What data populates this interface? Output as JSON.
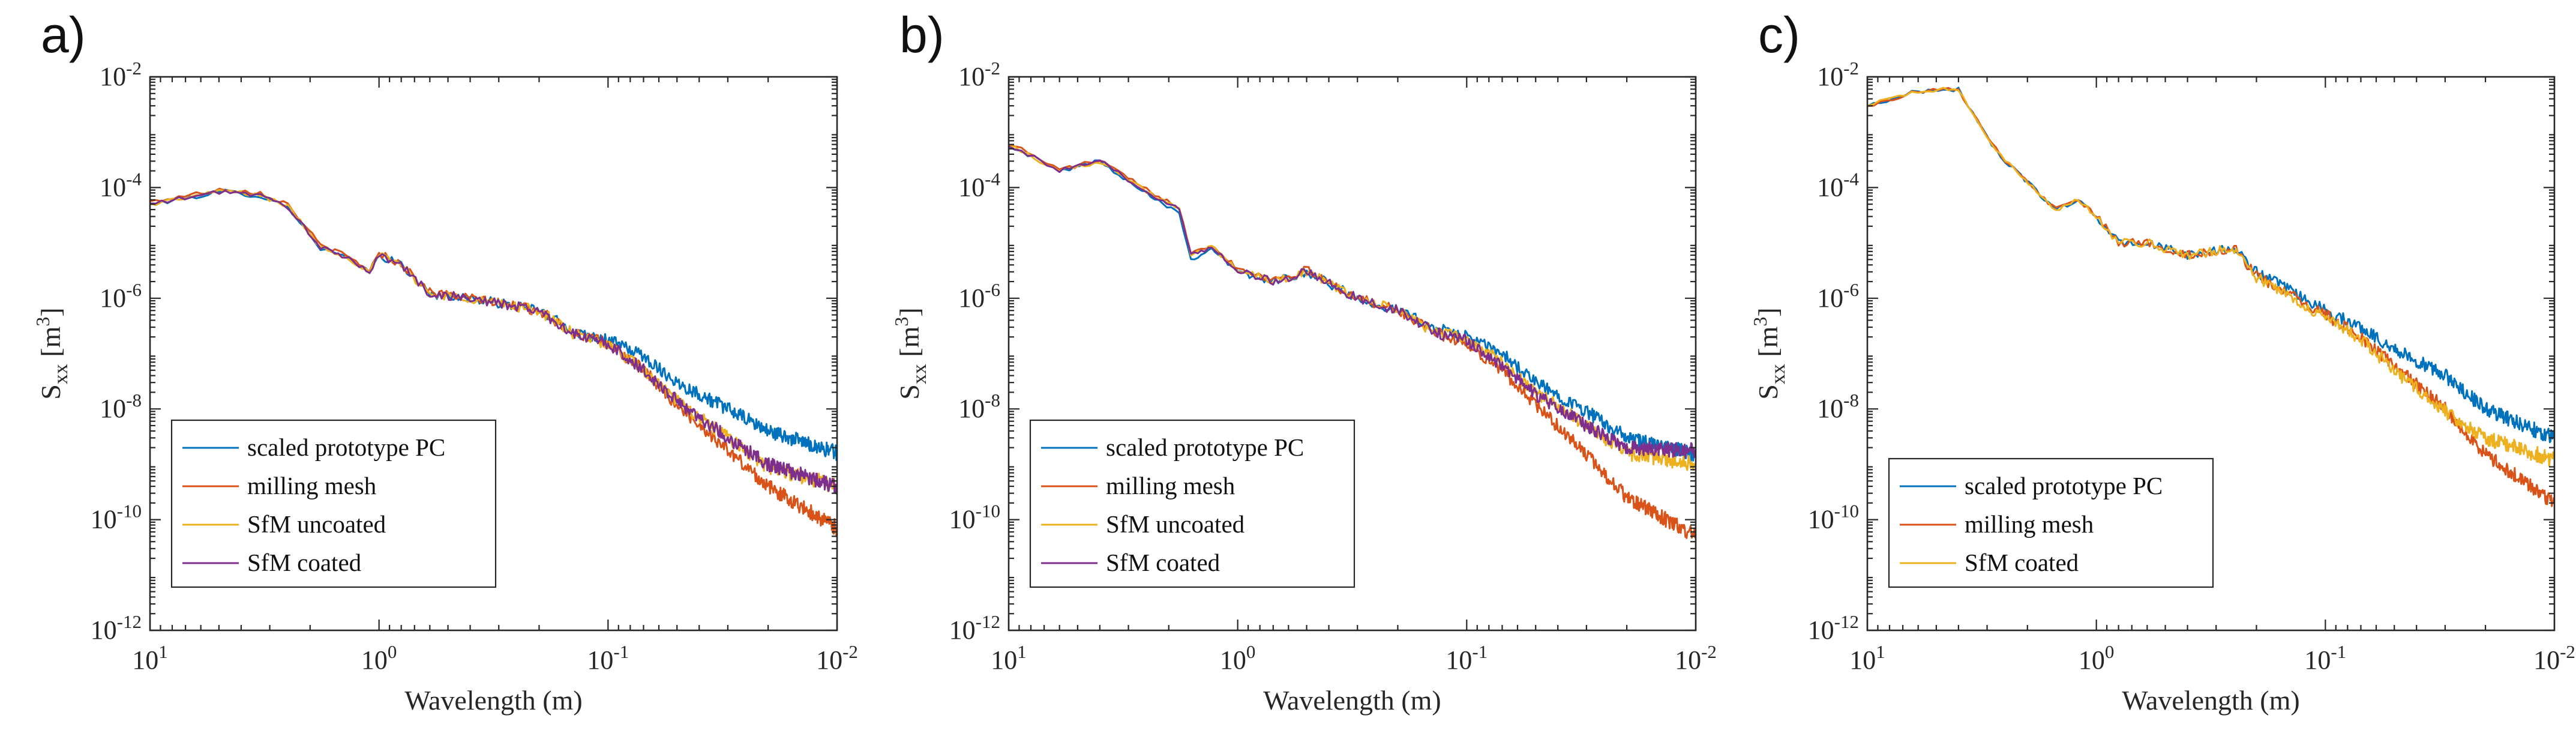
{
  "figure": {
    "panels": [
      {
        "panel_label": "a)",
        "ylabel_main": "S",
        "ylabel_sub": "xx",
        "ylabel_unit": "[m",
        "ylabel_sup": "3",
        "ylabel_close": "]"
      },
      {
        "panel_label": "b)",
        "ylabel_main": "S",
        "ylabel_sub": "xx",
        "ylabel_unit": "[m",
        "ylabel_sup": "3",
        "ylabel_close": "]"
      },
      {
        "panel_label": "c)",
        "ylabel_main": "S",
        "ylabel_sub": "xx",
        "ylabel_unit": "[m",
        "ylabel_sup": "3",
        "ylabel_close": "]"
      }
    ]
  },
  "chart_data": [
    {
      "type": "line",
      "panel_label": "a)",
      "xlabel": "Wavelength (m)",
      "ylabel": "S_xx [m^3]",
      "xscale": "log",
      "yscale": "log",
      "x_reversed": true,
      "xlim": [
        10,
        0.01
      ],
      "ylim": [
        1e-12,
        0.01
      ],
      "xticks": [
        {
          "v": 10,
          "b": "10",
          "e": "1"
        },
        {
          "v": 1,
          "b": "10",
          "e": "0"
        },
        {
          "v": 0.1,
          "b": "10",
          "e": "-1"
        },
        {
          "v": 0.01,
          "b": "10",
          "e": "-2"
        }
      ],
      "yticks": [
        {
          "v": 1e-12,
          "b": "10",
          "e": "-12"
        },
        {
          "v": 1e-10,
          "b": "10",
          "e": "-10"
        },
        {
          "v": 1e-08,
          "b": "10",
          "e": "-8"
        },
        {
          "v": 1e-06,
          "b": "10",
          "e": "-6"
        },
        {
          "v": 0.0001,
          "b": "10",
          "e": "-4"
        },
        {
          "v": 0.01,
          "b": "10",
          "e": "-2"
        }
      ],
      "legend_position": "bottom-left",
      "series": [
        {
          "name": "scaled prototype PC",
          "color": "#0072BD",
          "x": [
            10,
            4.7,
            3.3,
            2.5,
            1.8,
            1.4,
            1.1,
            1,
            0.8,
            0.6,
            0.4,
            0.2,
            0.14,
            0.1,
            0.07,
            0.05,
            0.03,
            0.02,
            0.01
          ],
          "y": [
            5e-05,
            8.5e-05,
            7e-05,
            4.5e-05,
            8e-06,
            5.5e-06,
            3e-06,
            6e-06,
            4e-06,
            1.2e-06,
            1e-06,
            6e-07,
            2.5e-07,
            1.8e-07,
            9e-08,
            3e-08,
            1e-08,
            4e-09,
            1.6e-09
          ]
        },
        {
          "name": "milling mesh",
          "color": "#D95319",
          "x": [
            10,
            4.7,
            3.3,
            2.5,
            1.8,
            1.4,
            1.1,
            1,
            0.8,
            0.6,
            0.4,
            0.2,
            0.14,
            0.1,
            0.07,
            0.05,
            0.03,
            0.02,
            0.01
          ],
          "y": [
            5.5e-05,
            9.5e-05,
            8e-05,
            5e-05,
            9e-06,
            6e-06,
            3.2e-06,
            6.5e-06,
            4.2e-06,
            1.3e-06,
            1e-06,
            6e-07,
            2.3e-07,
            1.5e-07,
            5e-08,
            1.2e-08,
            1.8e-09,
            4e-10,
            7e-11
          ]
        },
        {
          "name": "SfM uncoated",
          "color": "#EDB120",
          "x": [
            10,
            4.7,
            3.3,
            2.5,
            1.8,
            1.4,
            1.1,
            1,
            0.8,
            0.6,
            0.4,
            0.2,
            0.14,
            0.1,
            0.07,
            0.05,
            0.03,
            0.02,
            0.01
          ],
          "y": [
            5e-05,
            8.8e-05,
            7.2e-05,
            4.6e-05,
            8.5e-06,
            5.6e-06,
            3e-06,
            6e-06,
            4e-06,
            1.2e-06,
            1e-06,
            6e-07,
            2.2e-07,
            1.5e-07,
            5e-08,
            1.4e-08,
            3e-09,
            9e-10,
            4e-10
          ]
        },
        {
          "name": "SfM coated",
          "color": "#7E2F8E",
          "x": [
            10,
            4.7,
            3.3,
            2.5,
            1.8,
            1.4,
            1.1,
            1,
            0.8,
            0.6,
            0.4,
            0.2,
            0.14,
            0.1,
            0.07,
            0.05,
            0.03,
            0.02,
            0.01
          ],
          "y": [
            5e-05,
            8.7e-05,
            7.1e-05,
            4.5e-05,
            8.2e-06,
            5.5e-06,
            3e-06,
            6e-06,
            4e-06,
            1.2e-06,
            1e-06,
            6e-07,
            2.2e-07,
            1.5e-07,
            5e-08,
            1.4e-08,
            3e-09,
            1e-09,
            4e-10
          ]
        }
      ]
    },
    {
      "type": "line",
      "panel_label": "b)",
      "xlabel": "Wavelength (m)",
      "ylabel": "S_xx [m^3]",
      "xscale": "log",
      "yscale": "log",
      "x_reversed": true,
      "xlim": [
        10,
        0.01
      ],
      "ylim": [
        1e-12,
        0.01
      ],
      "xticks": [
        {
          "v": 10,
          "b": "10",
          "e": "1"
        },
        {
          "v": 1,
          "b": "10",
          "e": "0"
        },
        {
          "v": 0.1,
          "b": "10",
          "e": "-1"
        },
        {
          "v": 0.01,
          "b": "10",
          "e": "-2"
        }
      ],
      "yticks": [
        {
          "v": 1e-12,
          "b": "10",
          "e": "-12"
        },
        {
          "v": 1e-10,
          "b": "10",
          "e": "-10"
        },
        {
          "v": 1e-08,
          "b": "10",
          "e": "-8"
        },
        {
          "v": 1e-06,
          "b": "10",
          "e": "-6"
        },
        {
          "v": 0.0001,
          "b": "10",
          "e": "-4"
        },
        {
          "v": 0.01,
          "b": "10",
          "e": "-2"
        }
      ],
      "legend_position": "bottom-left",
      "series": [
        {
          "name": "scaled prototype PC",
          "color": "#0072BD",
          "x": [
            10,
            6,
            4,
            2.5,
            1.8,
            1.6,
            1.3,
            1,
            0.7,
            0.5,
            0.3,
            0.2,
            0.14,
            0.1,
            0.07,
            0.05,
            0.03,
            0.02,
            0.01
          ],
          "y": [
            0.0006,
            0.0002,
            0.0003,
            8e-05,
            3.5e-05,
            5e-06,
            8e-06,
            3e-06,
            2e-06,
            3e-06,
            1e-06,
            6e-07,
            3e-07,
            2e-07,
            1e-07,
            3e-08,
            9e-09,
            3e-09,
            1.5e-09
          ]
        },
        {
          "name": "milling mesh",
          "color": "#D95319",
          "x": [
            10,
            6,
            4,
            2.5,
            1.8,
            1.6,
            1.3,
            1,
            0.7,
            0.5,
            0.3,
            0.2,
            0.14,
            0.1,
            0.07,
            0.05,
            0.03,
            0.02,
            0.01
          ],
          "y": [
            0.00065,
            0.00021,
            0.00031,
            9e-05,
            4.5e-05,
            7e-06,
            9e-06,
            3.5e-06,
            2.2e-06,
            3.2e-06,
            1e-06,
            6e-07,
            2.5e-07,
            1.5e-07,
            5e-08,
            1.2e-08,
            1.5e-09,
            2.5e-10,
            5e-11
          ]
        },
        {
          "name": "SfM uncoated",
          "color": "#EDB120",
          "x": [
            10,
            6,
            4,
            2.5,
            1.8,
            1.6,
            1.3,
            1,
            0.7,
            0.5,
            0.3,
            0.2,
            0.14,
            0.1,
            0.07,
            0.05,
            0.03,
            0.02,
            0.01
          ],
          "y": [
            0.0006,
            0.0002,
            0.0003,
            8.5e-05,
            4e-05,
            6e-06,
            8.5e-06,
            3.2e-06,
            2e-06,
            3e-06,
            1e-06,
            6e-07,
            2.6e-07,
            1.8e-07,
            7e-08,
            2e-08,
            5e-09,
            1.6e-09,
            1e-09
          ]
        },
        {
          "name": "SfM coated",
          "color": "#7E2F8E",
          "x": [
            10,
            6,
            4,
            2.5,
            1.8,
            1.6,
            1.3,
            1,
            0.7,
            0.5,
            0.3,
            0.2,
            0.14,
            0.1,
            0.07,
            0.05,
            0.03,
            0.02,
            0.01
          ],
          "y": [
            0.0006,
            0.0002,
            0.0003,
            8.5e-05,
            4e-05,
            6e-06,
            8.5e-06,
            3.2e-06,
            2e-06,
            3e-06,
            1e-06,
            6e-07,
            2.5e-07,
            1.7e-07,
            6e-08,
            1.8e-08,
            5e-09,
            2e-09,
            1.8e-09
          ]
        }
      ]
    },
    {
      "type": "line",
      "panel_label": "c)",
      "xlabel": "Wavelength (m)",
      "ylabel": "S_xx [m^3]",
      "xscale": "log",
      "yscale": "log",
      "x_reversed": true,
      "xlim": [
        10,
        0.01
      ],
      "ylim": [
        1e-12,
        0.01
      ],
      "xticks": [
        {
          "v": 10,
          "b": "10",
          "e": "1"
        },
        {
          "v": 1,
          "b": "10",
          "e": "0"
        },
        {
          "v": 0.1,
          "b": "10",
          "e": "-1"
        },
        {
          "v": 0.01,
          "b": "10",
          "e": "-2"
        }
      ],
      "yticks": [
        {
          "v": 1e-12,
          "b": "10",
          "e": "-12"
        },
        {
          "v": 1e-10,
          "b": "10",
          "e": "-10"
        },
        {
          "v": 1e-08,
          "b": "10",
          "e": "-8"
        },
        {
          "v": 1e-06,
          "b": "10",
          "e": "-6"
        },
        {
          "v": 0.0001,
          "b": "10",
          "e": "-4"
        },
        {
          "v": 0.01,
          "b": "10",
          "e": "-2"
        }
      ],
      "legend_position": "bottom-left",
      "series": [
        {
          "name": "scaled prototype PC",
          "color": "#0072BD",
          "x": [
            10,
            6,
            4,
            3,
            2.5,
            1.5,
            1.2,
            1,
            0.8,
            0.6,
            0.4,
            0.25,
            0.2,
            0.1,
            0.07,
            0.05,
            0.03,
            0.02,
            0.01
          ],
          "y": [
            0.003,
            0.0055,
            0.006,
            0.0008,
            0.0003,
            4e-05,
            6e-05,
            3e-05,
            1e-05,
            1e-05,
            6e-06,
            8e-06,
            3e-06,
            6e-07,
            3e-07,
            1.2e-07,
            4e-08,
            1e-08,
            3e-09
          ]
        },
        {
          "name": "milling mesh",
          "color": "#D95319",
          "x": [
            10,
            6,
            4,
            3,
            2.5,
            1.5,
            1.2,
            1,
            0.8,
            0.6,
            0.4,
            0.25,
            0.2,
            0.1,
            0.07,
            0.05,
            0.03,
            0.02,
            0.01
          ],
          "y": [
            0.003,
            0.0055,
            0.006,
            0.0008,
            0.0003,
            4e-05,
            6e-05,
            3e-05,
            1e-05,
            1e-05,
            6e-06,
            8e-06,
            2.5e-06,
            5e-07,
            2e-07,
            6e-08,
            1e-08,
            1.5e-09,
            2e-10
          ]
        },
        {
          "name": "SfM coated",
          "color": "#EDB120",
          "x": [
            10,
            6,
            4,
            3,
            2.5,
            1.5,
            1.2,
            1,
            0.8,
            0.6,
            0.4,
            0.25,
            0.2,
            0.1,
            0.07,
            0.05,
            0.03,
            0.02,
            0.01
          ],
          "y": [
            0.003,
            0.0055,
            0.006,
            0.0008,
            0.0003,
            4e-05,
            6e-05,
            3e-05,
            1e-05,
            1e-05,
            6e-06,
            8e-06,
            2.4e-06,
            4.5e-07,
            1.8e-07,
            5e-08,
            9e-09,
            3e-09,
            1.2e-09
          ]
        }
      ]
    }
  ]
}
